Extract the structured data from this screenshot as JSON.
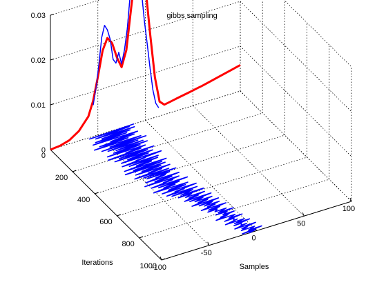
{
  "chart_data": {
    "type": "line",
    "view": "3d",
    "title": "gibbs sampling",
    "xlabel": "Samples",
    "ylabel": "Iterations",
    "zlabel": "",
    "xlim": [
      -100,
      100
    ],
    "ylim": [
      0,
      1000
    ],
    "zlim": [
      0,
      0.03
    ],
    "x_ticks": [
      "-100",
      "-50",
      "0",
      "50",
      "100"
    ],
    "y_ticks": [
      "0",
      "200",
      "400",
      "600",
      "800",
      "1000"
    ],
    "z_ticks": [
      "0",
      "0.01",
      "0.02",
      "0.03"
    ],
    "grid": true,
    "colors": {
      "true_density": "#ff0000",
      "samples": "#0000ff",
      "axes": "#000000"
    },
    "series": [
      {
        "role": "true_density",
        "x": [
          -100,
          -90,
          -80,
          -70,
          -60,
          -55,
          -50,
          -45,
          -40,
          -35,
          -30,
          -25,
          -20,
          -15,
          -10,
          -5,
          0,
          5,
          10,
          15,
          20,
          25,
          30,
          35,
          40,
          45,
          50,
          55,
          60,
          70,
          80,
          90,
          100
        ],
        "z": [
          0,
          0.0002,
          0.0008,
          0.0022,
          0.0048,
          0.008,
          0.013,
          0.0185,
          0.021,
          0.0195,
          0.016,
          0.0135,
          0.017,
          0.026,
          0.0345,
          0.0355,
          0.03,
          0.019,
          0.009,
          0.0032,
          0.0022,
          0.0024,
          0.0026,
          0.0028,
          0.003,
          0.0032,
          0.0034,
          0.0036,
          0.0038,
          0.0043,
          0.0048,
          0.0053,
          0.0058
        ]
      },
      {
        "role": "sample_histogram",
        "x": [
          -55,
          -52,
          -49,
          -46,
          -43,
          -40,
          -37,
          -34,
          -31,
          -28,
          -25,
          -22,
          -19,
          -16,
          -13,
          -10,
          -7,
          -4,
          -1,
          2,
          5,
          8,
          11,
          14
        ],
        "z": [
          0.007,
          0.0105,
          0.0155,
          0.0215,
          0.024,
          0.0228,
          0.0205,
          0.0158,
          0.0148,
          0.017,
          0.0142,
          0.0172,
          0.0218,
          0.029,
          0.0345,
          0.0362,
          0.0338,
          0.0288,
          0.0222,
          0.0168,
          0.0112,
          0.0062,
          0.0031,
          0.0019
        ]
      },
      {
        "role": "sample_trace",
        "x": [
          -12,
          -60,
          -18,
          -55,
          -14,
          -50,
          -20,
          -58,
          -25,
          -62,
          -15,
          -45,
          -20,
          -58,
          -28,
          -65,
          -16,
          -50,
          -12,
          -60,
          -22,
          -55,
          -18,
          -48,
          -15,
          -52,
          -24,
          -60,
          -20,
          -42,
          -26,
          -62,
          -14,
          -52,
          -22,
          -58,
          -18,
          -46,
          -24,
          -54,
          -12,
          -40,
          -30,
          -56,
          -18,
          -50,
          -20,
          -44,
          -28,
          -58,
          -14,
          -50,
          -20,
          -60,
          -18,
          -44,
          -24,
          -52,
          -16,
          -40,
          -26,
          -56,
          -20,
          -48,
          -14,
          -46,
          -22,
          -38,
          -28,
          -50,
          -15,
          -42,
          -24,
          -54,
          -18,
          -36,
          -26,
          -50,
          -12,
          -44,
          -22,
          -40,
          -28,
          -52,
          -16,
          -38,
          -20,
          -46,
          -10,
          -34,
          -24,
          -44,
          -12,
          -40,
          -18,
          -32,
          -8,
          -36,
          -22,
          -30,
          -10,
          -28,
          -18,
          -34,
          -6,
          -30,
          -16,
          -26,
          -8,
          -24,
          -14,
          -32,
          -4,
          -26,
          -12,
          -22,
          -6,
          -20,
          -12,
          -28,
          -2,
          -22,
          -10,
          -24,
          -14,
          -18,
          -6,
          -16,
          0,
          -20,
          -8,
          -14,
          -2,
          -18,
          -10,
          -24,
          -4,
          -12,
          2,
          -18,
          -8,
          -10,
          -6,
          -20,
          0,
          -12,
          4,
          -14,
          -6,
          -8,
          -2,
          -16,
          6,
          -10,
          -4,
          -12,
          2,
          -6,
          8,
          -14,
          0,
          -8
        ],
        "iterations": [
          0,
          1000
        ]
      }
    ]
  }
}
